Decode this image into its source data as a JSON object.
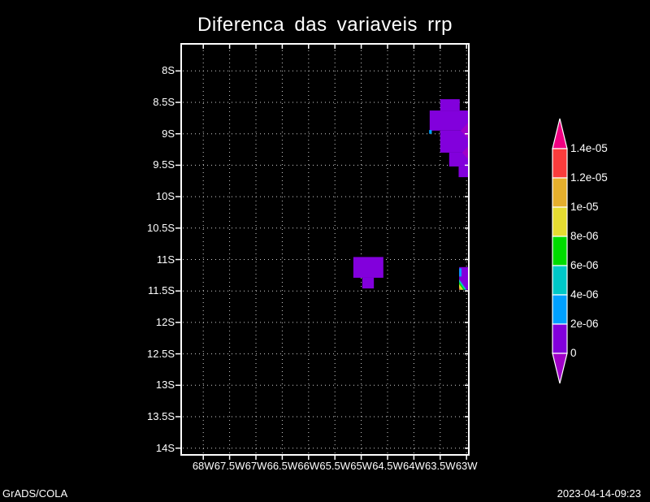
{
  "title": "Diferenca das variaveis rrp",
  "footer": {
    "left": "GrADS/COLA",
    "right": "2023-04-14-09:23"
  },
  "axes": {
    "lat_labels": [
      "8S",
      "8.5S",
      "9S",
      "9.5S",
      "10S",
      "10.5S",
      "11S",
      "11.5S",
      "12S",
      "12.5S",
      "13S",
      "13.5S",
      "14S"
    ],
    "lon_labels": [
      "68W",
      "67.5W",
      "67W",
      "66.5W",
      "66W",
      "65.5W",
      "65W",
      "64.5W",
      "64W",
      "63.5W",
      "63W"
    ]
  },
  "colorbar": {
    "labels_top_to_bottom": [
      "1.4e-05",
      "1.2e-05",
      "1e-05",
      "8e-06",
      "6e-06",
      "4e-06",
      "2e-06",
      "0"
    ],
    "segment_colors_top_to_bottom": [
      "#fa3c3c",
      "#e6af2d",
      "#e6dc32",
      "#00dc00",
      "#00c8c8",
      "#00a0ff",
      "#8200dc"
    ],
    "arrow_top_color": "#f00082",
    "arrow_bottom_color": "#a000c8"
  },
  "colors": {
    "background": "#000000",
    "foreground": "#ffffff",
    "grid": "#cfcfcf",
    "patch_purple": "#8200dc",
    "patch_negative": "#a000c8"
  },
  "chart_data": {
    "type": "heatmap",
    "title": "Diferenca das variaveis rrp",
    "x_ticks_deg_west": [
      68,
      67.5,
      67,
      66.5,
      66,
      65.5,
      65,
      64.5,
      64,
      63.5,
      63
    ],
    "y_ticks_deg_south": [
      8,
      8.5,
      9,
      9.5,
      10,
      10.5,
      11,
      11.5,
      12,
      12.5,
      13,
      13.5,
      14
    ],
    "x_range_deg_west": [
      68.42,
      62.95
    ],
    "y_range_deg_south": [
      7.58,
      14.11
    ],
    "grid": true,
    "legend_position": "right",
    "levels": [
      0,
      2e-06,
      4e-06,
      6e-06,
      8e-06,
      1e-05,
      1.2e-05,
      1.4e-05
    ],
    "palette": {
      "below_0": "#a000c8",
      "0_to_2e-06": "#8200dc",
      "2e-06_to_4e-06": "#00a0ff",
      "4e-06_to_6e-06": "#00c8c8",
      "6e-06_to_8e-06": "#00dc00",
      "8e-06_to_1e-05": "#e6dc32",
      "1e-05_to_1.2e-05": "#e6af2d",
      "1.2e-05_to_1.4e-05": "#fa3c3c",
      "above_1.4e-05": "#f00082"
    },
    "regions": [
      {
        "shape": "rect",
        "color": "#8200dc",
        "lon_w": 63.5,
        "lon_e": 63.13,
        "lat_n": 8.45,
        "lat_s": 8.63
      },
      {
        "shape": "rect",
        "color": "#8200dc",
        "lon_w": 63.7,
        "lon_e": 62.95,
        "lat_n": 8.63,
        "lat_s": 8.95
      },
      {
        "shape": "rect",
        "color": "#8200dc",
        "lon_w": 63.5,
        "lon_e": 62.95,
        "lat_n": 8.95,
        "lat_s": 9.3
      },
      {
        "shape": "rect",
        "color": "#8200dc",
        "lon_w": 63.33,
        "lon_e": 62.95,
        "lat_n": 9.3,
        "lat_s": 9.52
      },
      {
        "shape": "rect",
        "color": "#8200dc",
        "lon_w": 63.15,
        "lon_e": 62.95,
        "lat_n": 9.52,
        "lat_s": 9.69
      },
      {
        "shape": "rect",
        "color": "#8200dc",
        "lon_w": 65.15,
        "lon_e": 64.58,
        "lat_n": 10.96,
        "lat_s": 11.29
      },
      {
        "shape": "rect",
        "color": "#8200dc",
        "lon_w": 64.98,
        "lon_e": 64.76,
        "lat_n": 11.29,
        "lat_s": 11.46
      },
      {
        "shape": "rect",
        "color": "#8200dc",
        "lon_w": 63.14,
        "lon_e": 62.95,
        "lat_n": 11.12,
        "lat_s": 11.48
      },
      {
        "shape": "diamond",
        "color": "#a000c8",
        "lon": 62.956,
        "lat": 8.952,
        "rlon": 0.155,
        "rlat": 0.142
      },
      {
        "shape": "diamond",
        "color": "#a000c8",
        "lon": 62.956,
        "lat": 9.301,
        "rlon": 0.125,
        "rlat": 0.116
      },
      {
        "shape": "rect",
        "color": "#00a0ff",
        "lon_w": 63.71,
        "lon_e": 63.66,
        "lat_n": 8.94,
        "lat_s": 9.0
      },
      {
        "shape": "rect",
        "color": "#00a0ff",
        "lon_w": 63.14,
        "lon_e": 63.095,
        "lat_n": 11.14,
        "lat_s": 11.27
      },
      {
        "shape": "poly",
        "color": "#00c8c8",
        "points": [
          [
            63.14,
            11.315
          ],
          [
            63.0,
            11.48
          ],
          [
            63.14,
            11.48
          ]
        ]
      },
      {
        "shape": "poly",
        "color": "#00dc00",
        "points": [
          [
            63.14,
            11.353
          ],
          [
            63.033,
            11.48
          ],
          [
            63.14,
            11.48
          ]
        ]
      },
      {
        "shape": "poly",
        "color": "#e6dc32",
        "points": [
          [
            63.14,
            11.392
          ],
          [
            63.063,
            11.48
          ],
          [
            63.14,
            11.48
          ]
        ]
      },
      {
        "shape": "poly",
        "color": "#e6af2d",
        "points": [
          [
            63.14,
            11.43
          ],
          [
            63.094,
            11.48
          ],
          [
            63.14,
            11.48
          ]
        ]
      },
      {
        "shape": "poly",
        "color": "#fa3c3c",
        "points": [
          [
            63.14,
            11.455
          ],
          [
            63.117,
            11.48
          ],
          [
            63.14,
            11.48
          ]
        ]
      }
    ]
  }
}
